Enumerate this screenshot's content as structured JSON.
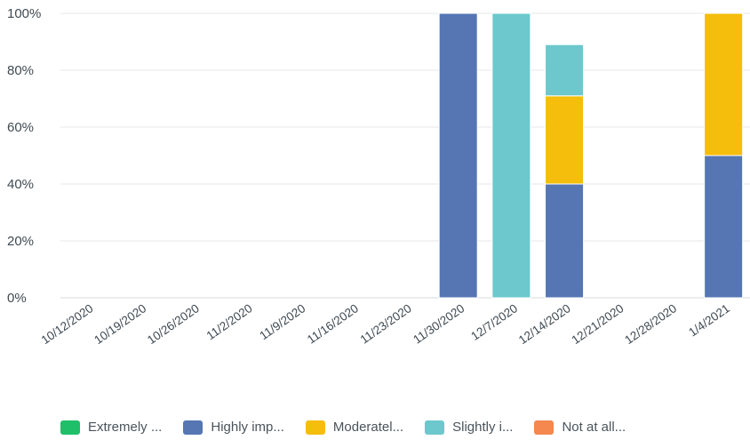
{
  "chart_data": {
    "type": "bar",
    "stacked": true,
    "categories": [
      "10/12/2020",
      "10/19/2020",
      "10/26/2020",
      "11/2/2020",
      "11/9/2020",
      "11/16/2020",
      "11/23/2020",
      "11/30/2020",
      "12/7/2020",
      "12/14/2020",
      "12/21/2020",
      "12/28/2020",
      "1/4/2021"
    ],
    "ylim": [
      0,
      100
    ],
    "yticks": [
      "0%",
      "20%",
      "40%",
      "60%",
      "80%",
      "100%"
    ],
    "grid": true,
    "legend_position": "bottom",
    "series": [
      {
        "name": "Extremely ...",
        "color": "#1fbf6a",
        "values": [
          0,
          0,
          0,
          0,
          0,
          0,
          0,
          0,
          0,
          0,
          0,
          0,
          0
        ]
      },
      {
        "name": "Highly imp...",
        "color": "#5576b3",
        "values": [
          0,
          0,
          0,
          0,
          0,
          0,
          0,
          100,
          0,
          40,
          0,
          0,
          50
        ]
      },
      {
        "name": "Moderatel...",
        "color": "#f5bd0c",
        "values": [
          0,
          0,
          0,
          0,
          0,
          0,
          0,
          0,
          0,
          31,
          0,
          0,
          50
        ]
      },
      {
        "name": "Slightly i...",
        "color": "#6cc8cc",
        "values": [
          0,
          0,
          0,
          0,
          0,
          0,
          0,
          0,
          100,
          18,
          0,
          0,
          0
        ]
      },
      {
        "name": "Not at all...",
        "color": "#f4884e",
        "values": [
          0,
          0,
          0,
          0,
          0,
          0,
          0,
          0,
          0,
          0,
          0,
          0,
          0
        ]
      }
    ]
  }
}
